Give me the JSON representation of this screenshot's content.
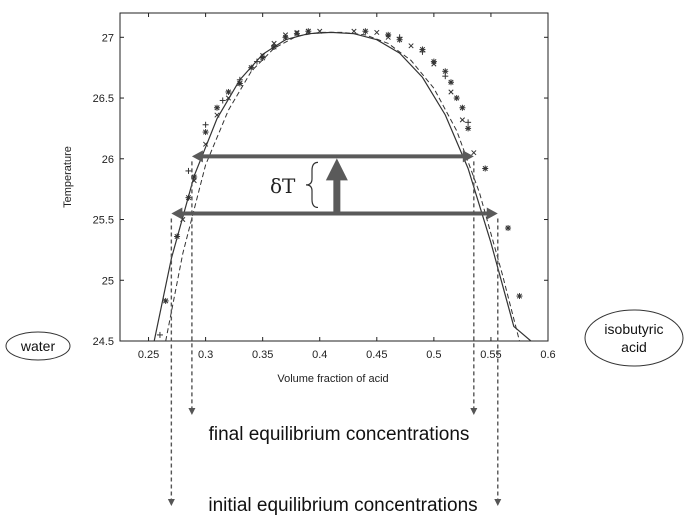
{
  "chart_data": {
    "type": "scatter",
    "xlabel": "Volume fraction of acid",
    "ylabel": "Temperature",
    "xlim": [
      0.225,
      0.6
    ],
    "ylim": [
      24.5,
      27.2
    ],
    "x_ticks": [
      "0.25",
      "0.3",
      "0.35",
      "0.4",
      "0.45",
      "0.5",
      "0.55",
      "0.6"
    ],
    "y_ticks": [
      "24.5",
      "25",
      "25.5",
      "26",
      "26.5",
      "27"
    ],
    "grid": false,
    "series": [
      {
        "marker": "star",
        "points": [
          [
            0.265,
            24.83
          ],
          [
            0.275,
            25.36
          ],
          [
            0.285,
            25.68
          ],
          [
            0.29,
            25.85
          ],
          [
            0.3,
            26.22
          ],
          [
            0.31,
            26.42
          ],
          [
            0.32,
            26.55
          ],
          [
            0.33,
            26.62
          ],
          [
            0.34,
            26.75
          ],
          [
            0.35,
            26.83
          ],
          [
            0.36,
            26.92
          ],
          [
            0.37,
            27.0
          ],
          [
            0.38,
            27.03
          ],
          [
            0.39,
            27.05
          ],
          [
            0.44,
            27.05
          ],
          [
            0.46,
            27.02
          ],
          [
            0.47,
            26.98
          ],
          [
            0.49,
            26.9
          ],
          [
            0.5,
            26.8
          ],
          [
            0.51,
            26.72
          ],
          [
            0.515,
            26.63
          ],
          [
            0.52,
            26.5
          ],
          [
            0.525,
            26.42
          ],
          [
            0.53,
            26.25
          ],
          [
            0.545,
            25.92
          ],
          [
            0.565,
            25.43
          ],
          [
            0.575,
            24.87
          ]
        ]
      },
      {
        "marker": "cross",
        "points": [
          [
            0.28,
            25.5
          ],
          [
            0.29,
            25.82
          ],
          [
            0.3,
            26.12
          ],
          [
            0.31,
            26.36
          ],
          [
            0.32,
            26.5
          ],
          [
            0.33,
            26.62
          ],
          [
            0.34,
            26.75
          ],
          [
            0.35,
            26.85
          ],
          [
            0.36,
            26.95
          ],
          [
            0.37,
            27.02
          ],
          [
            0.38,
            27.04
          ],
          [
            0.39,
            27.05
          ],
          [
            0.4,
            27.05
          ],
          [
            0.43,
            27.05
          ],
          [
            0.45,
            27.04
          ],
          [
            0.46,
            27.0
          ],
          [
            0.48,
            26.93
          ],
          [
            0.5,
            26.78
          ],
          [
            0.515,
            26.55
          ],
          [
            0.525,
            26.32
          ],
          [
            0.535,
            26.05
          ]
        ]
      },
      {
        "marker": "plus",
        "points": [
          [
            0.26,
            24.55
          ],
          [
            0.285,
            25.9
          ],
          [
            0.3,
            26.28
          ],
          [
            0.315,
            26.48
          ],
          [
            0.33,
            26.65
          ],
          [
            0.345,
            26.8
          ],
          [
            0.36,
            26.93
          ],
          [
            0.47,
            27.0
          ],
          [
            0.49,
            26.88
          ],
          [
            0.51,
            26.68
          ],
          [
            0.53,
            26.3
          ]
        ]
      }
    ],
    "curves": [
      {
        "style": "solid",
        "x": [
          0.255,
          0.27,
          0.29,
          0.31,
          0.33,
          0.35,
          0.37,
          0.39,
          0.41,
          0.43,
          0.45,
          0.47,
          0.49,
          0.51,
          0.53,
          0.55,
          0.57,
          0.585
        ],
        "y": [
          24.5,
          25.18,
          25.86,
          26.33,
          26.65,
          26.86,
          26.98,
          27.03,
          27.04,
          27.03,
          26.98,
          26.87,
          26.67,
          26.36,
          25.92,
          25.31,
          24.62,
          24.5
        ]
      },
      {
        "style": "dashed",
        "x": [
          0.265,
          0.28,
          0.3,
          0.32,
          0.34,
          0.36,
          0.38,
          0.4,
          0.42,
          0.44,
          0.46,
          0.48,
          0.5,
          0.52,
          0.54,
          0.56,
          0.575
        ],
        "y": [
          24.5,
          25.22,
          25.95,
          26.4,
          26.72,
          26.91,
          27.01,
          27.04,
          27.04,
          27.02,
          26.95,
          26.81,
          26.58,
          26.23,
          25.72,
          25.05,
          24.5
        ]
      }
    ],
    "tie_lines": [
      {
        "temperature": 26.02,
        "x_left": 0.288,
        "x_right": 0.535
      },
      {
        "temperature": 25.55,
        "x_left": 0.27,
        "x_right": 0.556
      }
    ],
    "up_arrow": {
      "x": 0.415,
      "from": 25.55,
      "to": 26.02
    },
    "annotations": {
      "delta_t": "δT",
      "final_label": "final equilibrium concentrations",
      "initial_label": "initial equilibrium concentrations",
      "left_oval": "water",
      "right_oval_line1": "isobutyric",
      "right_oval_line2": "acid"
    },
    "colors": {
      "arrow": "#5a5a5a",
      "frame": "#222222",
      "marker": "#333333"
    }
  }
}
